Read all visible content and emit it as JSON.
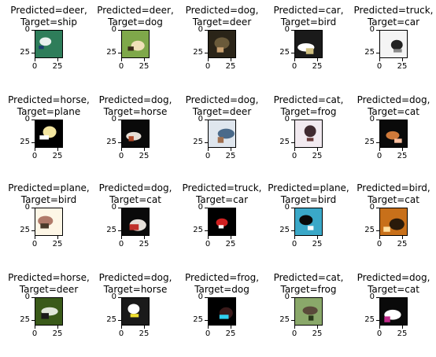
{
  "panels": [
    {
      "predicted": "Predicted=deer,",
      "target": "Target=ship",
      "bg": "#2e7d5a",
      "fg": "#e8f0ee",
      "accent": "#1b3b6f"
    },
    {
      "predicted": "Predicted=deer,",
      "target": "Target=dog",
      "bg": "#7fa84a",
      "fg": "#f0e0b8",
      "accent": "#3a2a1a"
    },
    {
      "predicted": "Predicted=dog,",
      "target": "Target=deer",
      "bg": "#2a2418",
      "fg": "#6a5a3a",
      "accent": "#c8a070"
    },
    {
      "predicted": "Predicted=car,",
      "target": "Target=bird",
      "bg": "#1a1a1a",
      "fg": "#ffffff",
      "accent": "#d0c080"
    },
    {
      "predicted": "Predicted=truck,",
      "target": "Target=car",
      "bg": "#f4f4f4",
      "fg": "#222222",
      "accent": "#888888"
    },
    {
      "predicted": "Predicted=horse,",
      "target": "Target=plane",
      "bg": "#000000",
      "fg": "#f4e6a0",
      "accent": "#ffffff"
    },
    {
      "predicted": "Predicted=dog,",
      "target": "Target=horse",
      "bg": "#0a0a0a",
      "fg": "#e8e0d8",
      "accent": "#b04a2a"
    },
    {
      "predicted": "Predicted=dog,",
      "target": "Target=deer",
      "bg": "#dfe6ee",
      "fg": "#4a6a8a",
      "accent": "#a07050"
    },
    {
      "predicted": "Predicted=cat,",
      "target": "Target=frog",
      "bg": "#f2eaf0",
      "fg": "#402a30",
      "accent": "#6a3a3a"
    },
    {
      "predicted": "Predicted=dog,",
      "target": "Target=cat",
      "bg": "#0a0a0a",
      "fg": "#d07a3a",
      "accent": "#ffc0a0"
    },
    {
      "predicted": "Predicted=plane,",
      "target": "Target=bird",
      "bg": "#fdf6e6",
      "fg": "#b07a6a",
      "accent": "#4a3a2a"
    },
    {
      "predicted": "Predicted=dog,",
      "target": "Target=cat",
      "bg": "#0a0a0a",
      "fg": "#e6e0da",
      "accent": "#c0302a"
    },
    {
      "predicted": "Predicted=truck,",
      "target": "Target=car",
      "bg": "#000000",
      "fg": "#d02020",
      "accent": "#ffffff"
    },
    {
      "predicted": "Predicted=plane,",
      "target": "Target=bird",
      "bg": "#3aa8c8",
      "fg": "#0a0a0a",
      "accent": "#ffffff"
    },
    {
      "predicted": "Predicted=bird,",
      "target": "Target=cat",
      "bg": "#c8701a",
      "fg": "#2a1a0a",
      "accent": "#ffe0a0"
    },
    {
      "predicted": "Predicted=horse,",
      "target": "Target=deer",
      "bg": "#3a5a1a",
      "fg": "#e0e6da",
      "accent": "#1a1a1a"
    },
    {
      "predicted": "Predicted=dog,",
      "target": "Target=horse",
      "bg": "#1a1a1a",
      "fg": "#ffffff",
      "accent": "#f0e030"
    },
    {
      "predicted": "Predicted=frog,",
      "target": "Target=dog",
      "bg": "#000000",
      "fg": "#3a1a1a",
      "accent": "#30d0f0"
    },
    {
      "predicted": "Predicted=cat,",
      "target": "Target=frog",
      "bg": "#8aa86a",
      "fg": "#5a4a3a",
      "accent": "#2a3a1a"
    },
    {
      "predicted": "Predicted=dog,",
      "target": "Target=cat",
      "bg": "#0a0a0a",
      "fg": "#ffffff",
      "accent": "#c02a8a"
    }
  ],
  "axis": {
    "yticks": [
      "0",
      "25"
    ],
    "xticks": [
      "0",
      "25"
    ]
  }
}
